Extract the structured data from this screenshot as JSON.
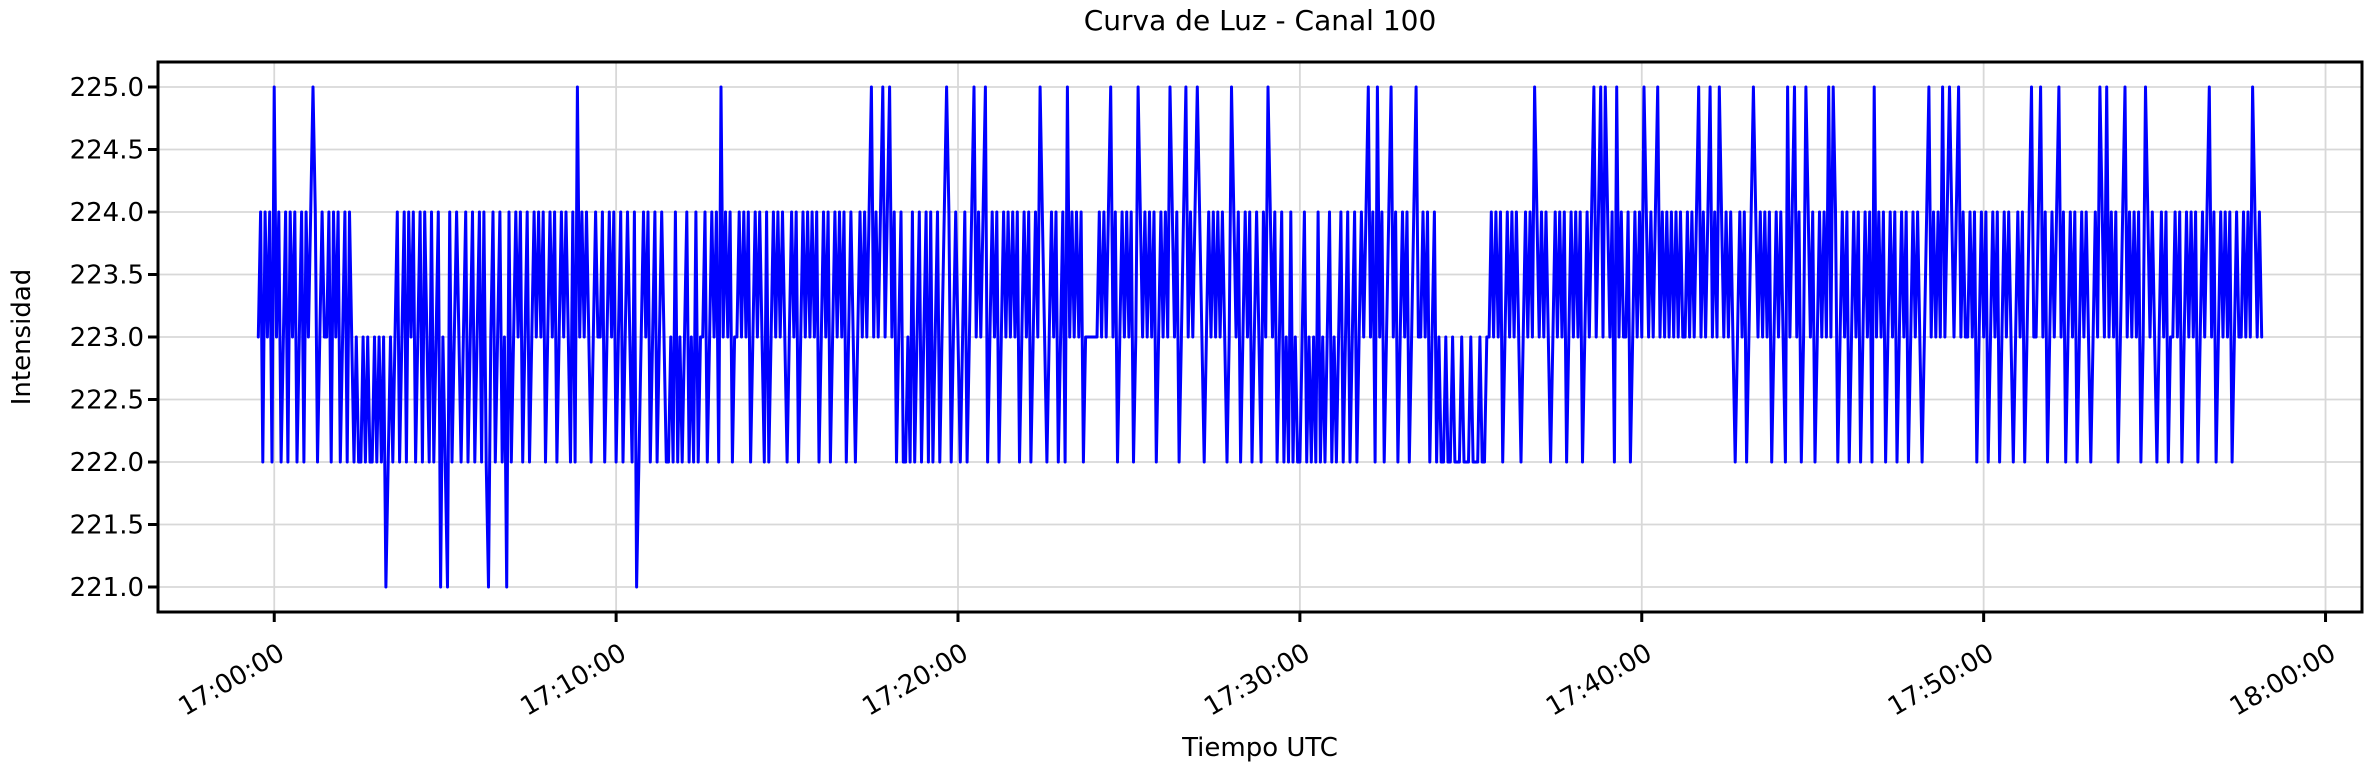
{
  "page": {
    "background": "#ffffff"
  },
  "chart_data": {
    "type": "line",
    "title": "Curva de Luz - Canal 100",
    "xlabel": "Tiempo UTC",
    "ylabel": "Intensidad",
    "legend": null,
    "grid": true,
    "x_tick_labels": [
      "17:00:00",
      "17:10:00",
      "17:20:00",
      "17:30:00",
      "17:40:00",
      "17:50:00",
      "18:00:00"
    ],
    "x_tick_label_rotation_deg": 30,
    "y_tick_values": [
      221.0,
      221.5,
      222.0,
      222.5,
      223.0,
      223.5,
      224.0,
      224.5,
      225.0
    ],
    "y_tick_labels": [
      "221.0",
      "221.5",
      "222.0",
      "222.5",
      "223.0",
      "223.5",
      "224.0",
      "224.5",
      "225.0"
    ],
    "xlim": [
      "16:56:36",
      "18:01:04"
    ],
    "ylim": [
      220.8,
      225.2
    ],
    "colors": {
      "line": "#0000ff",
      "grid": "#d8d8d8",
      "axis": "#000000",
      "text": "#000000",
      "background": "#ffffff"
    },
    "line_width": 3,
    "series": {
      "name": "Canal 100",
      "start_time": "16:59:32",
      "sample_interval_seconds": 4,
      "value_base": 220,
      "value_encoding": "intensity = 220 + digit (levels 221,222,223,224,225)",
      "value_levels": [
        221,
        222,
        223,
        224,
        225
      ],
      "encoded_samples": [
        "342434253423424342342434542343",
        "342434234243232232322323231232",
        "342342434234243242341321423432",
        "342342342421342342314234342342",
        "343434234342343432425343432343",
        "342343423423432412343423423432",
        "232423234232423342343425343423",
        "343434234343242343434323434234",
        "343434234342343434234323434345",
        "343453453423422324234234242342",
        "345423432342345343452343423434",
        "343423434234354323434234253434",
        "342333333434345342343434235434",
        "343423434354342345343454323434",
        "343432354342343423432435434234",
        "232423223423232423234232342342",
        "342343453425342345342343423453",
        "343423423223223222322232223223",
        "343434234343432343435434343234",
        "343423434342343453453543425343",
        "342343435434345343434343433434",
        "345343453435434343234342345434",
        "343423434325345342354342343435",
        "354234342343423434253434234342",
        "343423434323453434353454345343",
        "343423434234342343432343423453",
        "345342343453423434234343234354",
        "353434234534343423543432343423",
        "343423434342343453423434342343",
        "3434354343"
      ]
    }
  }
}
